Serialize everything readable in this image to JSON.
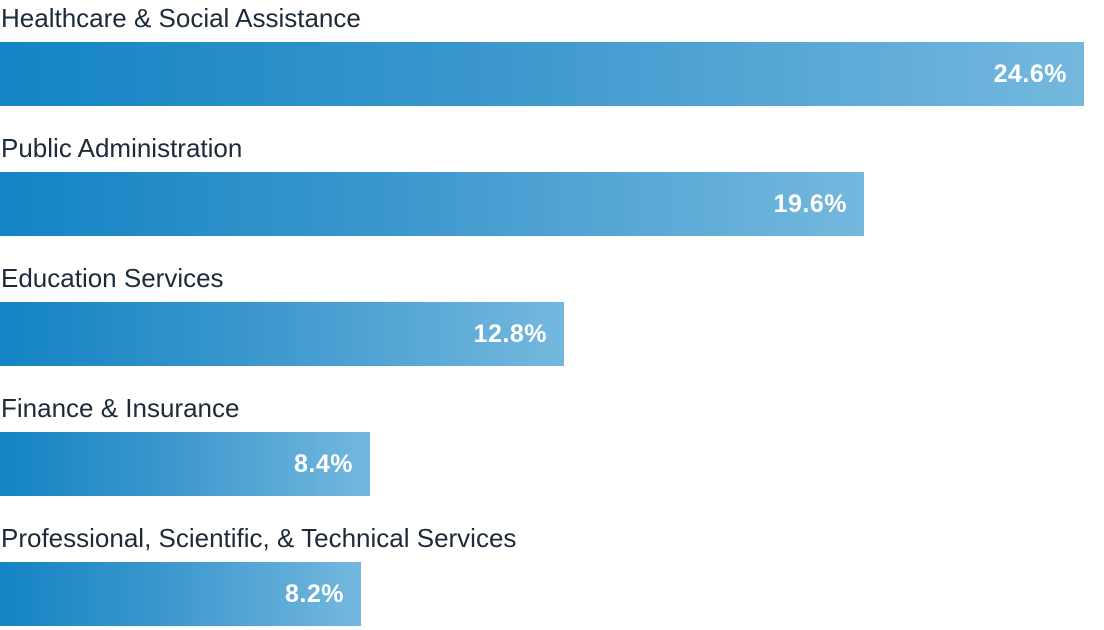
{
  "chart_data": {
    "type": "bar",
    "orientation": "horizontal",
    "categories": [
      "Healthcare & Social Assistance",
      "Public Administration",
      "Education Services",
      "Finance & Insurance",
      "Professional, Scientific, & Technical Services"
    ],
    "values": [
      24.6,
      19.6,
      12.8,
      8.4,
      8.2
    ],
    "value_labels": [
      "24.6%",
      "19.6%",
      "12.8%",
      "8.4%",
      "8.2%"
    ],
    "xlim": [
      0,
      24.6
    ],
    "grid": false,
    "legend": "none",
    "colors": {
      "bar_start": "#1384c4",
      "bar_end": "#74b8de",
      "label_text": "#1d2a3a",
      "value_text": "#ffffff"
    }
  }
}
